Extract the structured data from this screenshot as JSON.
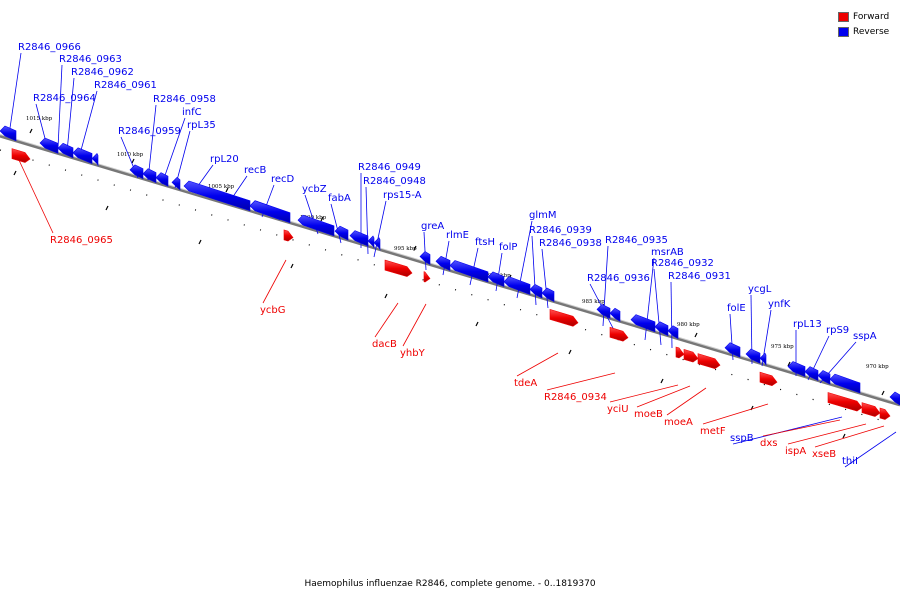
{
  "title": "Haemophilus influenzae R2846, complete genome. - 0..1819370",
  "legend": {
    "forward": {
      "label": "Forward",
      "color": "#ee0000"
    },
    "reverse": {
      "label": "Reverse",
      "color": "#0000ee"
    }
  },
  "colors": {
    "forward": "#ee0000",
    "reverse": "#0000ee",
    "backbone": "#888888"
  },
  "ticks": [
    "1015 kbp",
    "1010 kbp",
    "1005 kbp",
    "1000 kbp",
    "995 kbp",
    "990 kbp",
    "985 kbp",
    "980 kbp",
    "975 kbp",
    "970 kbp"
  ],
  "genes": [
    {
      "name": "R2846_0966",
      "strand": "reverse"
    },
    {
      "name": "R2846_0965",
      "strand": "forward"
    },
    {
      "name": "R2846_0964",
      "strand": "reverse"
    },
    {
      "name": "R2846_0963",
      "strand": "reverse"
    },
    {
      "name": "R2846_0962",
      "strand": "reverse"
    },
    {
      "name": "R2846_0961",
      "strand": "reverse"
    },
    {
      "name": "R2846_0959",
      "strand": "reverse"
    },
    {
      "name": "R2846_0958",
      "strand": "reverse"
    },
    {
      "name": "infC",
      "strand": "reverse"
    },
    {
      "name": "rpL35",
      "strand": "reverse"
    },
    {
      "name": "rpL20",
      "strand": "reverse"
    },
    {
      "name": "recB",
      "strand": "reverse"
    },
    {
      "name": "recD",
      "strand": "reverse"
    },
    {
      "name": "ycbZ",
      "strand": "reverse"
    },
    {
      "name": "fabA",
      "strand": "reverse"
    },
    {
      "name": "ycbG",
      "strand": "forward"
    },
    {
      "name": "R2846_0949",
      "strand": "reverse"
    },
    {
      "name": "R2846_0948",
      "strand": "reverse"
    },
    {
      "name": "rps15-A",
      "strand": "reverse"
    },
    {
      "name": "dacB",
      "strand": "forward"
    },
    {
      "name": "yhbY",
      "strand": "forward"
    },
    {
      "name": "greA",
      "strand": "reverse"
    },
    {
      "name": "rlmE",
      "strand": "reverse"
    },
    {
      "name": "ftsH",
      "strand": "reverse"
    },
    {
      "name": "folP",
      "strand": "reverse"
    },
    {
      "name": "glmM",
      "strand": "reverse"
    },
    {
      "name": "R2846_0939",
      "strand": "reverse"
    },
    {
      "name": "R2846_0938",
      "strand": "reverse"
    },
    {
      "name": "tdeA",
      "strand": "forward"
    },
    {
      "name": "R2846_0935",
      "strand": "reverse"
    },
    {
      "name": "R2846_0936",
      "strand": "reverse"
    },
    {
      "name": "R2846_0934",
      "strand": "forward"
    },
    {
      "name": "msrAB",
      "strand": "reverse"
    },
    {
      "name": "R2846_0932",
      "strand": "reverse"
    },
    {
      "name": "R2846_0931",
      "strand": "reverse"
    },
    {
      "name": "yciU",
      "strand": "forward"
    },
    {
      "name": "moeB",
      "strand": "forward"
    },
    {
      "name": "moeA",
      "strand": "forward"
    },
    {
      "name": "folE",
      "strand": "reverse"
    },
    {
      "name": "ycgL",
      "strand": "reverse"
    },
    {
      "name": "ynfK",
      "strand": "reverse"
    },
    {
      "name": "metF",
      "strand": "forward"
    },
    {
      "name": "rpL13",
      "strand": "reverse"
    },
    {
      "name": "rpS9",
      "strand": "reverse"
    },
    {
      "name": "sspA",
      "strand": "reverse"
    },
    {
      "name": "sspB",
      "strand": "reverse"
    },
    {
      "name": "dxs",
      "strand": "forward"
    },
    {
      "name": "ispA",
      "strand": "forward"
    },
    {
      "name": "xseB",
      "strand": "forward"
    },
    {
      "name": "thiI",
      "strand": "reverse"
    }
  ]
}
